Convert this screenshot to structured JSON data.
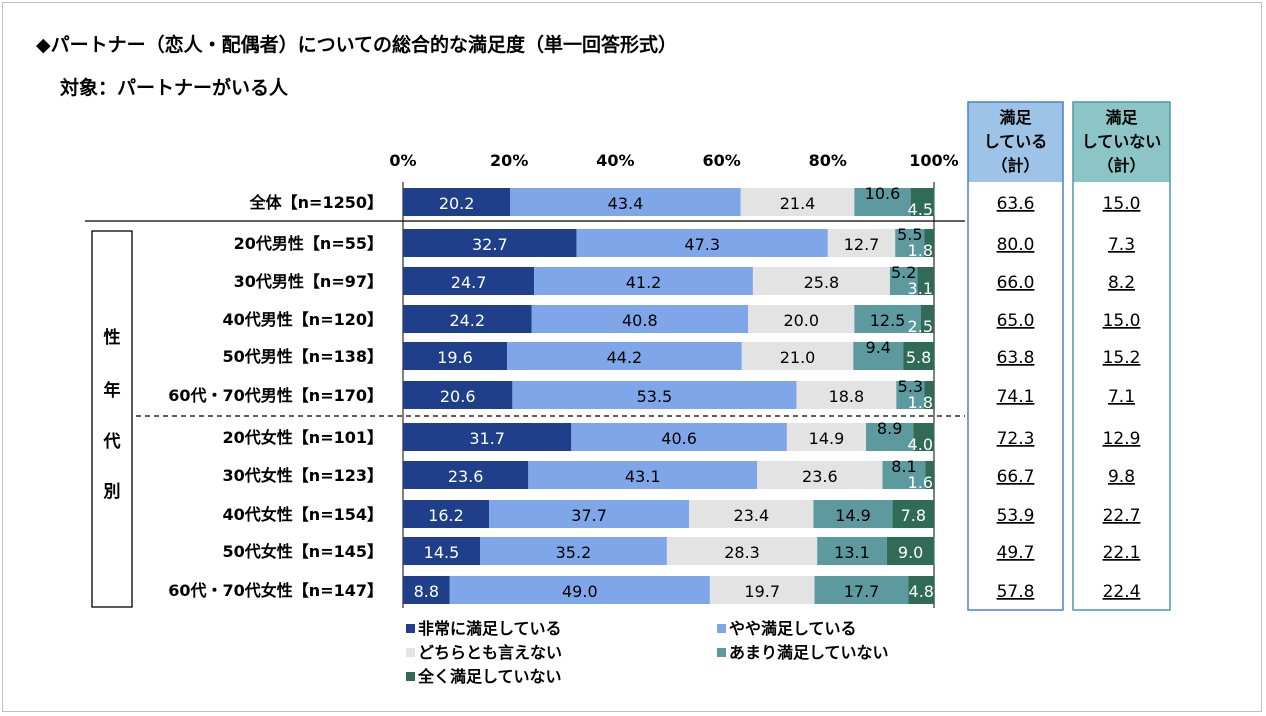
{
  "title": "◆パートナー（恋人・配偶者）についての総合的な満足度（単一回答形式）",
  "subtitle": "対象：パートナーがいる人",
  "colors": {
    "series": [
      "#1f3f8a",
      "#7fa6e8",
      "#e3e3e3",
      "#5c9aa0",
      "#2f6b56"
    ],
    "label_text": [
      "#ffffff",
      "#000000",
      "#000000",
      "#000000",
      "#ffffff"
    ],
    "satisfied_box": "#4a7fd4",
    "satisfied_header_bg": "#9dc3e6",
    "unsatisfied_box": "#4b9ca3",
    "unsatisfied_header_bg": "#8cc5c8"
  },
  "chart_data": {
    "type": "bar",
    "orientation": "horizontal",
    "stacked": true,
    "percent": true,
    "xlim": [
      0,
      100
    ],
    "x_ticks": [
      "0%",
      "20%",
      "40%",
      "60%",
      "80%",
      "100%"
    ],
    "group_label": "性年代別",
    "categories": [
      "全体【n=1250】",
      "20代男性【n=55】",
      "30代男性【n=97】",
      "40代男性【n=120】",
      "50代男性【n=138】",
      "60代・70代男性【n=170】",
      "20代女性【n=101】",
      "30代女性【n=123】",
      "40代女性【n=154】",
      "50代女性【n=145】",
      "60代・70代女性【n=147】"
    ],
    "series": [
      {
        "name": "非常に満足している",
        "values": [
          20.2,
          32.7,
          24.7,
          24.2,
          19.6,
          20.6,
          31.7,
          23.6,
          16.2,
          14.5,
          8.8
        ]
      },
      {
        "name": "やや満足している",
        "values": [
          43.4,
          47.3,
          41.2,
          40.8,
          44.2,
          53.5,
          40.6,
          43.1,
          37.7,
          35.2,
          49.0
        ]
      },
      {
        "name": "どちらとも言えない",
        "values": [
          21.4,
          12.7,
          25.8,
          20.0,
          21.0,
          18.8,
          14.9,
          23.6,
          23.4,
          28.3,
          19.7
        ]
      },
      {
        "name": "あまり満足していない",
        "values": [
          10.6,
          5.5,
          5.2,
          12.5,
          9.4,
          5.3,
          8.9,
          8.1,
          14.9,
          13.1,
          17.7
        ]
      },
      {
        "name": "全く満足していない",
        "values": [
          4.5,
          1.8,
          3.1,
          2.5,
          5.8,
          1.8,
          4.0,
          1.6,
          7.8,
          9.0,
          4.8
        ]
      }
    ],
    "summary": {
      "satisfied": {
        "header": [
          "満足",
          "している",
          "（計）"
        ],
        "values": [
          "63.6",
          "80.0",
          "66.0",
          "65.0",
          "63.8",
          "74.1",
          "72.3",
          "66.7",
          "53.9",
          "49.7",
          "57.8"
        ]
      },
      "unsatisfied": {
        "header": [
          "満足",
          "していない",
          "（計）"
        ],
        "values": [
          "15.0",
          "7.3",
          "8.2",
          "15.0",
          "15.2",
          "7.1",
          "12.9",
          "9.8",
          "22.7",
          "22.1",
          "22.4"
        ]
      }
    },
    "legend_position": "bottom"
  }
}
